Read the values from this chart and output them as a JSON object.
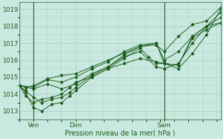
{
  "xlabel": "Pression niveau de la mer( hPa )",
  "ylim": [
    1012.5,
    1019.4
  ],
  "xlim": [
    0,
    100
  ],
  "yticks": [
    1013,
    1014,
    1015,
    1016,
    1017,
    1018,
    1019
  ],
  "xtick_positions": [
    7,
    28,
    72
  ],
  "xtick_labels": [
    "Ven",
    "Dim",
    "Sam"
  ],
  "vlines": [
    7,
    72
  ],
  "bg_color": "#c8e8e0",
  "line_color": "#1a5c1a",
  "grid_color": "#a8cec0",
  "series": [
    [
      0,
      1014.5,
      3,
      1014.4,
      7,
      1014.5,
      14,
      1014.9,
      21,
      1015.1,
      28,
      1015.2,
      36,
      1015.6,
      44,
      1016.0,
      52,
      1016.4,
      60,
      1016.8,
      68,
      1016.9,
      72,
      1016.5,
      79,
      1017.4,
      86,
      1018.1,
      93,
      1018.3,
      100,
      1019.1
    ],
    [
      0,
      1014.5,
      7,
      1014.4,
      14,
      1014.85,
      21,
      1014.7,
      28,
      1015.0,
      36,
      1015.5,
      44,
      1015.9,
      52,
      1016.5,
      60,
      1016.9,
      68,
      1017.0,
      72,
      1016.0,
      79,
      1016.5,
      86,
      1017.4,
      93,
      1018.0,
      100,
      1018.5
    ],
    [
      0,
      1014.5,
      7,
      1014.3,
      14,
      1014.6,
      21,
      1014.3,
      28,
      1014.6,
      36,
      1015.2,
      44,
      1015.6,
      52,
      1016.3,
      60,
      1016.8,
      68,
      1017.0,
      72,
      1015.8,
      79,
      1015.5,
      86,
      1016.4,
      93,
      1017.5,
      100,
      1019.0
    ],
    [
      0,
      1014.5,
      3,
      1014.2,
      7,
      1013.8,
      11,
      1013.5,
      16,
      1013.7,
      21,
      1013.8,
      25,
      1014.1,
      28,
      1014.4,
      36,
      1015.1,
      44,
      1015.6,
      52,
      1016.2,
      60,
      1016.5,
      68,
      1015.6,
      72,
      1015.5,
      79,
      1015.8,
      86,
      1017.0,
      93,
      1018.0,
      100,
      1018.8
    ],
    [
      0,
      1014.5,
      3,
      1014.1,
      7,
      1013.2,
      11,
      1013.0,
      16,
      1013.4,
      21,
      1013.5,
      25,
      1013.9,
      28,
      1014.2,
      36,
      1015.0,
      44,
      1015.5,
      52,
      1015.8,
      60,
      1016.1,
      68,
      1015.9,
      72,
      1015.8,
      79,
      1015.7,
      86,
      1017.3,
      93,
      1017.8,
      100,
      1018.2
    ],
    [
      0,
      1014.5,
      3,
      1013.9,
      7,
      1013.5,
      11,
      1013.7,
      16,
      1013.8,
      21,
      1014.0,
      25,
      1014.4,
      28,
      1014.7,
      36,
      1015.0,
      44,
      1015.5,
      52,
      1016.1,
      60,
      1016.7,
      64,
      1016.2,
      68,
      1015.8,
      72,
      1015.8,
      79,
      1015.7,
      86,
      1017.4,
      93,
      1018.0,
      100,
      1018.2
    ]
  ]
}
